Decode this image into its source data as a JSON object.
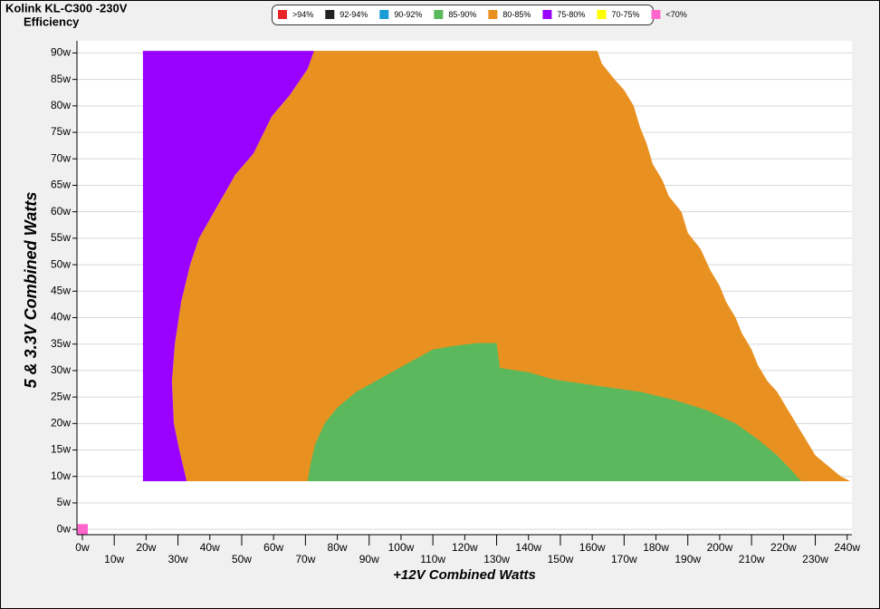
{
  "chart_data": {
    "type": "area",
    "title": "Kolink KL-C300 -230V",
    "subtitle": "Efficiency",
    "x_label": "+12V Combined Watts",
    "y_label": "5 & 3.3V Combined Watts",
    "xlim": [
      -1.7,
      241.5
    ],
    "ylim": [
      -1,
      92.3
    ],
    "grid": true,
    "legend": "top",
    "xticks": [
      {
        "value": 0,
        "label": "0w"
      },
      {
        "value": 10,
        "label": "10w"
      },
      {
        "value": 20,
        "label": "20w"
      },
      {
        "value": 30,
        "label": "30w"
      },
      {
        "value": 40,
        "label": "40w"
      },
      {
        "value": 50,
        "label": "50w"
      },
      {
        "value": 60,
        "label": "60w"
      },
      {
        "value": 70,
        "label": "70w"
      },
      {
        "value": 80,
        "label": "80w"
      },
      {
        "value": 90,
        "label": "90w"
      },
      {
        "value": 100,
        "label": "100w"
      },
      {
        "value": 110,
        "label": "110w"
      },
      {
        "value": 120,
        "label": "120w"
      },
      {
        "value": 130,
        "label": "130w"
      },
      {
        "value": 140,
        "label": "140w"
      },
      {
        "value": 150,
        "label": "150w"
      },
      {
        "value": 160,
        "label": "160w"
      },
      {
        "value": 170,
        "label": "170w"
      },
      {
        "value": 180,
        "label": "180w"
      },
      {
        "value": 190,
        "label": "190w"
      },
      {
        "value": 200,
        "label": "200w"
      },
      {
        "value": 210,
        "label": "210w"
      },
      {
        "value": 220,
        "label": "220w"
      },
      {
        "value": 230,
        "label": "230w"
      },
      {
        "value": 240,
        "label": "240w"
      }
    ],
    "yticks": [
      {
        "value": 0,
        "label": "0w"
      },
      {
        "value": 5,
        "label": "5w"
      },
      {
        "value": 10,
        "label": "10w"
      },
      {
        "value": 15,
        "label": "15w"
      },
      {
        "value": 20,
        "label": "20w"
      },
      {
        "value": 25,
        "label": "25w"
      },
      {
        "value": 30,
        "label": "30w"
      },
      {
        "value": 35,
        "label": "35w"
      },
      {
        "value": 40,
        "label": "40w"
      },
      {
        "value": 45,
        "label": "45w"
      },
      {
        "value": 50,
        "label": "50w"
      },
      {
        "value": 55,
        "label": "55w"
      },
      {
        "value": 60,
        "label": "60w"
      },
      {
        "value": 65,
        "label": "65w"
      },
      {
        "value": 70,
        "label": "70w"
      },
      {
        "value": 75,
        "label": "75w"
      },
      {
        "value": 80,
        "label": "80w"
      },
      {
        "value": 85,
        "label": "85w"
      },
      {
        "value": 90,
        "label": "90w"
      }
    ],
    "series": [
      {
        "name": ">94%",
        "color": "#e8262a",
        "x": [],
        "y": []
      },
      {
        "name": "92-94%",
        "color": "#222222",
        "x": [],
        "y": []
      },
      {
        "name": "90-92%",
        "color": "#1a9ad6",
        "x": [],
        "y": []
      },
      {
        "name": "85-90%",
        "color": "#5cb85c",
        "x": [
          70.7,
          71.5,
          73,
          76,
          80,
          86,
          92,
          98,
          104,
          110,
          116,
          124,
          130,
          131,
          140,
          148,
          163,
          175,
          186,
          196,
          205,
          212,
          218,
          222,
          225.6
        ],
        "y": [
          9.1,
          12,
          16,
          20,
          23,
          26,
          28,
          30,
          32,
          34,
          34.6,
          35.2,
          35.2,
          30.5,
          29.7,
          28.3,
          27,
          26,
          24.4,
          22.5,
          20,
          17,
          14,
          11.5,
          9.1
        ]
      },
      {
        "name": "80-85%",
        "color": "#e89120",
        "x": [
          32.7,
          32.4,
          30.4,
          28.7,
          28.1,
          29,
          31,
          33.8,
          36.6,
          42.3,
          48,
          53.7,
          59.4,
          65,
          70.7,
          72.7,
          161.6,
          163,
          167,
          170,
          173,
          175,
          177,
          179,
          182,
          184,
          188,
          190,
          194,
          197,
          200,
          202,
          205,
          207,
          210,
          212,
          215,
          218,
          220,
          223,
          225,
          227,
          230,
          234,
          238,
          241
        ],
        "y": [
          9.1,
          10,
          15,
          20,
          28,
          35,
          43,
          50,
          55,
          61,
          67,
          71,
          78,
          82,
          87,
          90.4,
          90.4,
          88,
          85,
          83,
          80,
          76,
          73,
          69,
          66,
          63,
          60,
          56,
          53,
          49,
          46,
          43,
          40,
          37,
          34,
          31,
          28,
          26,
          24,
          21,
          19,
          17,
          14,
          12,
          10,
          9.1
        ]
      },
      {
        "name": "75-80%",
        "color": "#9900ff",
        "x": [
          19,
          19,
          72.7,
          70.7,
          65,
          59.4,
          53.7,
          48,
          42.3,
          36.6,
          33.8,
          31,
          29,
          28.1,
          28.7,
          30.4,
          32.4,
          32.7
        ],
        "y": [
          9.1,
          90.4,
          90.4,
          87,
          82,
          78,
          71,
          67,
          61,
          55,
          50,
          43,
          35,
          28,
          20,
          15,
          10,
          9.1
        ]
      },
      {
        "name": "70-75%",
        "color": "#ffff00",
        "x": [],
        "y": []
      },
      {
        "name": "<70%",
        "color": "#ff66cc",
        "x": [
          -1.5,
          1.7,
          1.7,
          -1.5
        ],
        "y": [
          -1,
          -1,
          1,
          1
        ]
      }
    ]
  }
}
